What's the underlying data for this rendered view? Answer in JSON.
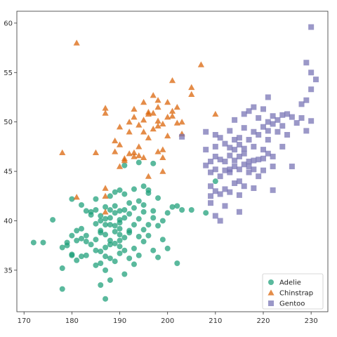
{
  "chart_data": {
    "type": "scatter",
    "title": "",
    "xlabel": "",
    "ylabel": "",
    "xlim": [
      168.5,
      233.5
    ],
    "ylim": [
      30.8,
      61.2
    ],
    "xticks": [
      170,
      180,
      190,
      200,
      210,
      220,
      230
    ],
    "yticks": [
      35,
      40,
      45,
      50,
      55,
      60
    ],
    "grid": false,
    "legend": "bottom-right",
    "series": [
      {
        "name": "Adelie",
        "marker": "circle",
        "color": "#1b9e77",
        "points": [
          [
            172,
            37.8
          ],
          [
            174,
            37.8
          ],
          [
            176,
            40.1
          ],
          [
            178,
            33.1
          ],
          [
            178,
            35.2
          ],
          [
            178,
            37.3
          ],
          [
            179,
            37.5
          ],
          [
            179,
            37.8
          ],
          [
            180,
            42.2
          ],
          [
            180,
            38.5
          ],
          [
            180,
            36.6
          ],
          [
            181,
            39.0
          ],
          [
            181,
            36.0
          ],
          [
            181,
            38.0
          ],
          [
            182,
            38.2
          ],
          [
            182,
            39.2
          ],
          [
            182,
            41.6
          ],
          [
            182,
            36.4
          ],
          [
            183,
            37.9
          ],
          [
            183,
            38.5
          ],
          [
            183,
            36.5
          ],
          [
            184,
            37.6
          ],
          [
            184,
            40.6
          ],
          [
            184,
            40.9
          ],
          [
            185,
            38.1
          ],
          [
            185,
            35.5
          ],
          [
            185,
            37.0
          ],
          [
            185,
            39.7
          ],
          [
            185,
            41.1
          ],
          [
            185,
            42.2
          ],
          [
            186,
            38.8
          ],
          [
            186,
            39.0
          ],
          [
            186,
            40.5
          ],
          [
            186,
            36.9
          ],
          [
            186,
            40.0
          ],
          [
            186,
            35.7
          ],
          [
            187,
            37.3
          ],
          [
            187,
            39.6
          ],
          [
            187,
            40.2
          ],
          [
            187,
            41.4
          ],
          [
            187,
            35.0
          ],
          [
            187,
            38.6
          ],
          [
            187,
            36.4
          ],
          [
            188,
            41.1
          ],
          [
            188,
            39.6
          ],
          [
            188,
            37.6
          ],
          [
            188,
            40.3
          ],
          [
            188,
            36.2
          ],
          [
            188,
            38.0
          ],
          [
            188,
            42.5
          ],
          [
            189,
            39.5
          ],
          [
            189,
            38.9
          ],
          [
            189,
            41.5
          ],
          [
            189,
            35.9
          ],
          [
            189,
            37.7
          ],
          [
            189,
            40.8
          ],
          [
            189,
            42.9
          ],
          [
            190,
            40.1
          ],
          [
            190,
            38.6
          ],
          [
            190,
            36.7
          ],
          [
            190,
            39.2
          ],
          [
            190,
            41.0
          ],
          [
            190,
            37.4
          ],
          [
            190,
            39.8
          ],
          [
            190,
            43.1
          ],
          [
            190,
            38.0
          ],
          [
            191,
            40.3
          ],
          [
            191,
            41.1
          ],
          [
            191,
            37.0
          ],
          [
            191,
            34.6
          ],
          [
            191,
            42.7
          ],
          [
            191,
            38.3
          ],
          [
            192,
            39.0
          ],
          [
            192,
            36.2
          ],
          [
            192,
            41.8
          ],
          [
            192,
            40.7
          ],
          [
            192,
            38.8
          ],
          [
            193,
            39.6
          ],
          [
            193,
            37.2
          ],
          [
            193,
            41.3
          ],
          [
            193,
            43.2
          ],
          [
            193,
            35.6
          ],
          [
            194,
            40.2
          ],
          [
            194,
            38.4
          ],
          [
            194,
            42.0
          ],
          [
            194,
            36.5
          ],
          [
            195,
            40.9
          ],
          [
            195,
            39.1
          ],
          [
            195,
            37.9
          ],
          [
            195,
            41.6
          ],
          [
            195,
            43.5
          ],
          [
            196,
            42.8
          ],
          [
            196,
            39.6
          ],
          [
            196,
            38.5
          ],
          [
            197,
            40.3
          ],
          [
            197,
            41.0
          ],
          [
            197,
            45.8
          ],
          [
            197,
            37.0
          ],
          [
            198,
            39.5
          ],
          [
            198,
            36.3
          ],
          [
            198,
            42.3
          ],
          [
            199,
            38.1
          ],
          [
            199,
            40.0
          ],
          [
            200,
            40.8
          ],
          [
            200,
            37.2
          ],
          [
            201,
            41.4
          ],
          [
            202,
            41.5
          ],
          [
            202,
            35.7
          ],
          [
            203,
            41.1
          ],
          [
            205,
            41.1
          ],
          [
            187,
            32.1
          ],
          [
            186,
            33.5
          ],
          [
            188,
            34.0
          ],
          [
            180,
            36.5
          ],
          [
            183,
            41.0
          ],
          [
            191,
            45.6
          ],
          [
            194,
            45.9
          ],
          [
            208,
            40.8
          ],
          [
            210,
            44.0
          ],
          [
            196,
            43.1
          ]
        ]
      },
      {
        "name": "Chinstrap",
        "marker": "triangle",
        "color": "#d95f02",
        "points": [
          [
            178,
            46.9
          ],
          [
            181,
            42.4
          ],
          [
            181,
            58.0
          ],
          [
            185,
            46.9
          ],
          [
            187,
            50.9
          ],
          [
            187,
            51.4
          ],
          [
            187,
            42.5
          ],
          [
            187,
            43.3
          ],
          [
            187,
            40.9
          ],
          [
            189,
            48.1
          ],
          [
            189,
            47.0
          ],
          [
            190,
            47.7
          ],
          [
            190,
            49.5
          ],
          [
            190,
            45.5
          ],
          [
            191,
            46.3
          ],
          [
            191,
            46.1
          ],
          [
            192,
            49.0
          ],
          [
            192,
            50.0
          ],
          [
            192,
            46.8
          ],
          [
            193,
            51.3
          ],
          [
            193,
            46.5
          ],
          [
            193,
            50.5
          ],
          [
            194,
            49.7
          ],
          [
            194,
            47.5
          ],
          [
            194,
            46.6
          ],
          [
            195,
            50.2
          ],
          [
            195,
            49.0
          ],
          [
            195,
            52.0
          ],
          [
            196,
            50.8
          ],
          [
            196,
            51.0
          ],
          [
            196,
            48.4
          ],
          [
            197,
            52.7
          ],
          [
            197,
            50.9
          ],
          [
            197,
            49.3
          ],
          [
            198,
            51.5
          ],
          [
            198,
            52.2
          ],
          [
            198,
            50.1
          ],
          [
            198,
            49.6
          ],
          [
            199,
            49.8
          ],
          [
            199,
            46.4
          ],
          [
            199,
            47.2
          ],
          [
            200,
            50.5
          ],
          [
            200,
            52.0
          ],
          [
            200,
            48.6
          ],
          [
            201,
            50.6
          ],
          [
            201,
            51.1
          ],
          [
            201,
            54.2
          ],
          [
            202,
            49.9
          ],
          [
            202,
            51.5
          ],
          [
            203,
            50.0
          ],
          [
            203,
            48.8
          ],
          [
            205,
            53.5
          ],
          [
            205,
            52.8
          ],
          [
            207,
            55.8
          ],
          [
            210,
            50.8
          ],
          [
            196,
            44.5
          ],
          [
            199,
            45.0
          ],
          [
            198,
            47.0
          ],
          [
            193,
            46.9
          ],
          [
            195,
            46.4
          ]
        ]
      },
      {
        "name": "Gentoo",
        "marker": "square",
        "color": "#7570b3",
        "points": [
          [
            203,
            48.5
          ],
          [
            208,
            49.0
          ],
          [
            208,
            47.2
          ],
          [
            208,
            45.6
          ],
          [
            209,
            44.9
          ],
          [
            209,
            43.5
          ],
          [
            209,
            41.8
          ],
          [
            209,
            42.5
          ],
          [
            209,
            46.0
          ],
          [
            210,
            46.5
          ],
          [
            210,
            48.7
          ],
          [
            210,
            45.2
          ],
          [
            210,
            47.5
          ],
          [
            210,
            43.0
          ],
          [
            211,
            46.2
          ],
          [
            211,
            48.4
          ],
          [
            211,
            44.5
          ],
          [
            211,
            42.7
          ],
          [
            212,
            45.1
          ],
          [
            212,
            47.8
          ],
          [
            212,
            46.0
          ],
          [
            212,
            43.2
          ],
          [
            212,
            41.5
          ],
          [
            213,
            47.4
          ],
          [
            213,
            45.2
          ],
          [
            213,
            49.1
          ],
          [
            213,
            44.9
          ],
          [
            213,
            42.9
          ],
          [
            214,
            46.1
          ],
          [
            214,
            47.2
          ],
          [
            214,
            43.8
          ],
          [
            214,
            45.5
          ],
          [
            214,
            48.2
          ],
          [
            214,
            50.2
          ],
          [
            215,
            46.5
          ],
          [
            215,
            45.2
          ],
          [
            215,
            47.7
          ],
          [
            215,
            44.0
          ],
          [
            215,
            42.6
          ],
          [
            215,
            48.4
          ],
          [
            216,
            45.7
          ],
          [
            216,
            46.8
          ],
          [
            216,
            49.4
          ],
          [
            216,
            43.5
          ],
          [
            216,
            47.3
          ],
          [
            216,
            50.8
          ],
          [
            217,
            46.0
          ],
          [
            217,
            48.2
          ],
          [
            217,
            44.9
          ],
          [
            217,
            45.5
          ],
          [
            217,
            51.1
          ],
          [
            218,
            46.1
          ],
          [
            218,
            47.5
          ],
          [
            218,
            49.0
          ],
          [
            218,
            43.3
          ],
          [
            218,
            45.2
          ],
          [
            219,
            46.2
          ],
          [
            219,
            48.7
          ],
          [
            219,
            50.4
          ],
          [
            219,
            44.5
          ],
          [
            220,
            46.3
          ],
          [
            220,
            49.5
          ],
          [
            220,
            51.3
          ],
          [
            220,
            47.2
          ],
          [
            220,
            45.1
          ],
          [
            221,
            49.1
          ],
          [
            221,
            46.8
          ],
          [
            221,
            50.0
          ],
          [
            221,
            48.2
          ],
          [
            221,
            52.5
          ],
          [
            222,
            46.5
          ],
          [
            222,
            49.8
          ],
          [
            222,
            50.6
          ],
          [
            222,
            43.1
          ],
          [
            223,
            49.0
          ],
          [
            223,
            50.2
          ],
          [
            224,
            49.6
          ],
          [
            224,
            50.7
          ],
          [
            225,
            50.8
          ],
          [
            225,
            48.7
          ],
          [
            226,
            45.5
          ],
          [
            227,
            49.9
          ],
          [
            228,
            51.8
          ],
          [
            228,
            50.4
          ],
          [
            229,
            52.2
          ],
          [
            229,
            49.1
          ],
          [
            230,
            53.3
          ],
          [
            230,
            55.0
          ],
          [
            230,
            50.1
          ],
          [
            231,
            54.3
          ],
          [
            230,
            59.6
          ],
          [
            229,
            56.0
          ],
          [
            215,
            40.9
          ],
          [
            222,
            45.5
          ],
          [
            210,
            40.5
          ],
          [
            211,
            40.0
          ],
          [
            224,
            47.5
          ],
          [
            226,
            50.5
          ],
          [
            213,
            46.6
          ],
          [
            218,
            51.5
          ]
        ]
      }
    ]
  }
}
